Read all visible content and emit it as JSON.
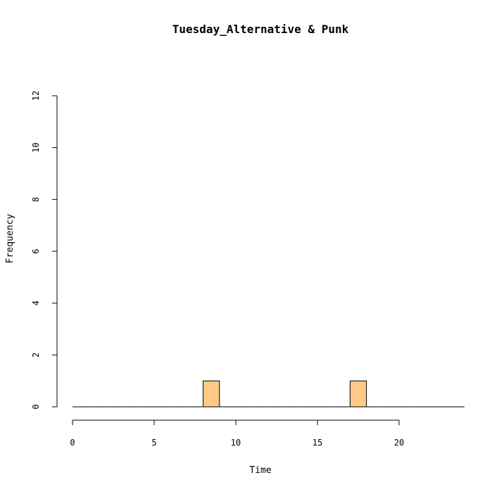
{
  "chart_data": {
    "type": "bar",
    "title": "Tuesday_Alternative & Punk",
    "xlabel": "Time",
    "ylabel": "Frequency",
    "xlim": [
      0,
      24
    ],
    "ylim": [
      0,
      12
    ],
    "x_ticks": [
      0,
      5,
      10,
      15,
      20
    ],
    "y_ticks": [
      0,
      2,
      4,
      6,
      8,
      10,
      12
    ],
    "bins": [
      {
        "start": 0,
        "end": 1,
        "count": 0
      },
      {
        "start": 1,
        "end": 2,
        "count": 0
      },
      {
        "start": 2,
        "end": 3,
        "count": 0
      },
      {
        "start": 3,
        "end": 4,
        "count": 0
      },
      {
        "start": 4,
        "end": 5,
        "count": 0
      },
      {
        "start": 5,
        "end": 6,
        "count": 0
      },
      {
        "start": 6,
        "end": 7,
        "count": 0
      },
      {
        "start": 7,
        "end": 8,
        "count": 0
      },
      {
        "start": 8,
        "end": 9,
        "count": 1
      },
      {
        "start": 9,
        "end": 10,
        "count": 0
      },
      {
        "start": 10,
        "end": 11,
        "count": 0
      },
      {
        "start": 11,
        "end": 12,
        "count": 0
      },
      {
        "start": 12,
        "end": 13,
        "count": 0
      },
      {
        "start": 13,
        "end": 14,
        "count": 0
      },
      {
        "start": 14,
        "end": 15,
        "count": 0
      },
      {
        "start": 15,
        "end": 16,
        "count": 0
      },
      {
        "start": 16,
        "end": 17,
        "count": 0
      },
      {
        "start": 17,
        "end": 18,
        "count": 1
      },
      {
        "start": 18,
        "end": 19,
        "count": 0
      },
      {
        "start": 19,
        "end": 20,
        "count": 0
      },
      {
        "start": 20,
        "end": 21,
        "count": 0
      },
      {
        "start": 21,
        "end": 22,
        "count": 0
      },
      {
        "start": 22,
        "end": 23,
        "count": 0
      },
      {
        "start": 23,
        "end": 24,
        "count": 0
      }
    ],
    "bar_fill": "#ffc987",
    "bar_stroke": "#000000",
    "grid": false,
    "legend": "none"
  }
}
